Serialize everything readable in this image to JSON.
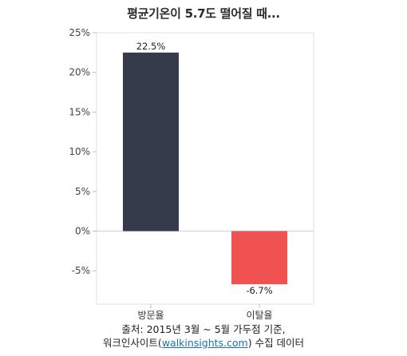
{
  "chart_data": {
    "type": "bar",
    "title": "평균기온이 5.7도 떨어질 때...",
    "categories": [
      "방문율",
      "이탈율"
    ],
    "values": [
      22.5,
      -6.7
    ],
    "data_labels": [
      "22.5%",
      "-6.7%"
    ],
    "ylim": [
      -9.2,
      25
    ],
    "yticks": [
      25,
      20,
      15,
      10,
      5,
      0,
      -5
    ],
    "ytick_labels": [
      "25%",
      "20%",
      "15%",
      "10%",
      "5%",
      "0%",
      "-5%"
    ],
    "grid": false,
    "colors": {
      "방문율": "#363b4c",
      "이탈율": "#f05252"
    },
    "xlabel": "",
    "ylabel": ""
  },
  "source": {
    "line1": "출처: 2015년 3월 ~ 5월 가두점 기준,",
    "line2_prefix": "워크인사이트(",
    "line2_link": "walkinsights.com",
    "line2_suffix": ") 수집 데이터"
  }
}
